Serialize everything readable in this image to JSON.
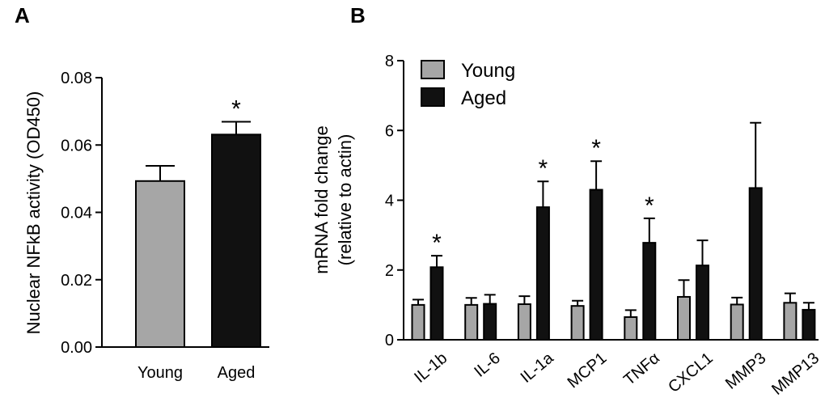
{
  "colors": {
    "young": "#a6a6a6",
    "aged": "#111111"
  },
  "chart_data": [
    {
      "panel": "A",
      "type": "bar",
      "categories": [
        "Young",
        "Aged"
      ],
      "values": [
        0.0493,
        0.0631
      ],
      "errors": [
        0.0045,
        0.0038
      ],
      "significant": [
        false,
        true
      ],
      "significance_marker": "*",
      "ylabel": "Nuclear NFkB activity (OD450)",
      "xlabel": "",
      "ylim": [
        0,
        0.08
      ],
      "yticks": [
        "0.00",
        "0.02",
        "0.04",
        "0.06",
        "0.08"
      ],
      "ytick_values": [
        0,
        0.02,
        0.04,
        0.06,
        0.08
      ]
    },
    {
      "panel": "B",
      "type": "bar",
      "categories": [
        "IL-1b",
        "IL-6",
        "IL-1a",
        "MCP1",
        "TNFα",
        "CXCL1",
        "MMP3",
        "MMP13"
      ],
      "series": [
        {
          "name": "Young",
          "values": [
            1.0,
            1.0,
            1.02,
            0.97,
            0.65,
            1.23,
            1.01,
            1.06
          ],
          "errors": [
            0.15,
            0.2,
            0.23,
            0.15,
            0.2,
            0.48,
            0.2,
            0.27
          ]
        },
        {
          "name": "Aged",
          "values": [
            2.08,
            1.03,
            3.8,
            4.3,
            2.78,
            2.13,
            4.35,
            0.86
          ],
          "errors": [
            0.33,
            0.26,
            0.74,
            0.82,
            0.7,
            0.72,
            1.87,
            0.2
          ]
        }
      ],
      "significant": [
        true,
        false,
        true,
        true,
        true,
        false,
        false,
        false
      ],
      "significance_marker": "*",
      "ylabel": "mRNA fold change",
      "ylabel2": "(relative to actin)",
      "xlabel": "",
      "ylim": [
        0,
        8
      ],
      "yticks": [
        "0",
        "2",
        "4",
        "6",
        "8"
      ],
      "ytick_values": [
        0,
        2,
        4,
        6,
        8
      ],
      "legend": [
        "Young",
        "Aged"
      ],
      "legend_position": "top-left"
    }
  ]
}
